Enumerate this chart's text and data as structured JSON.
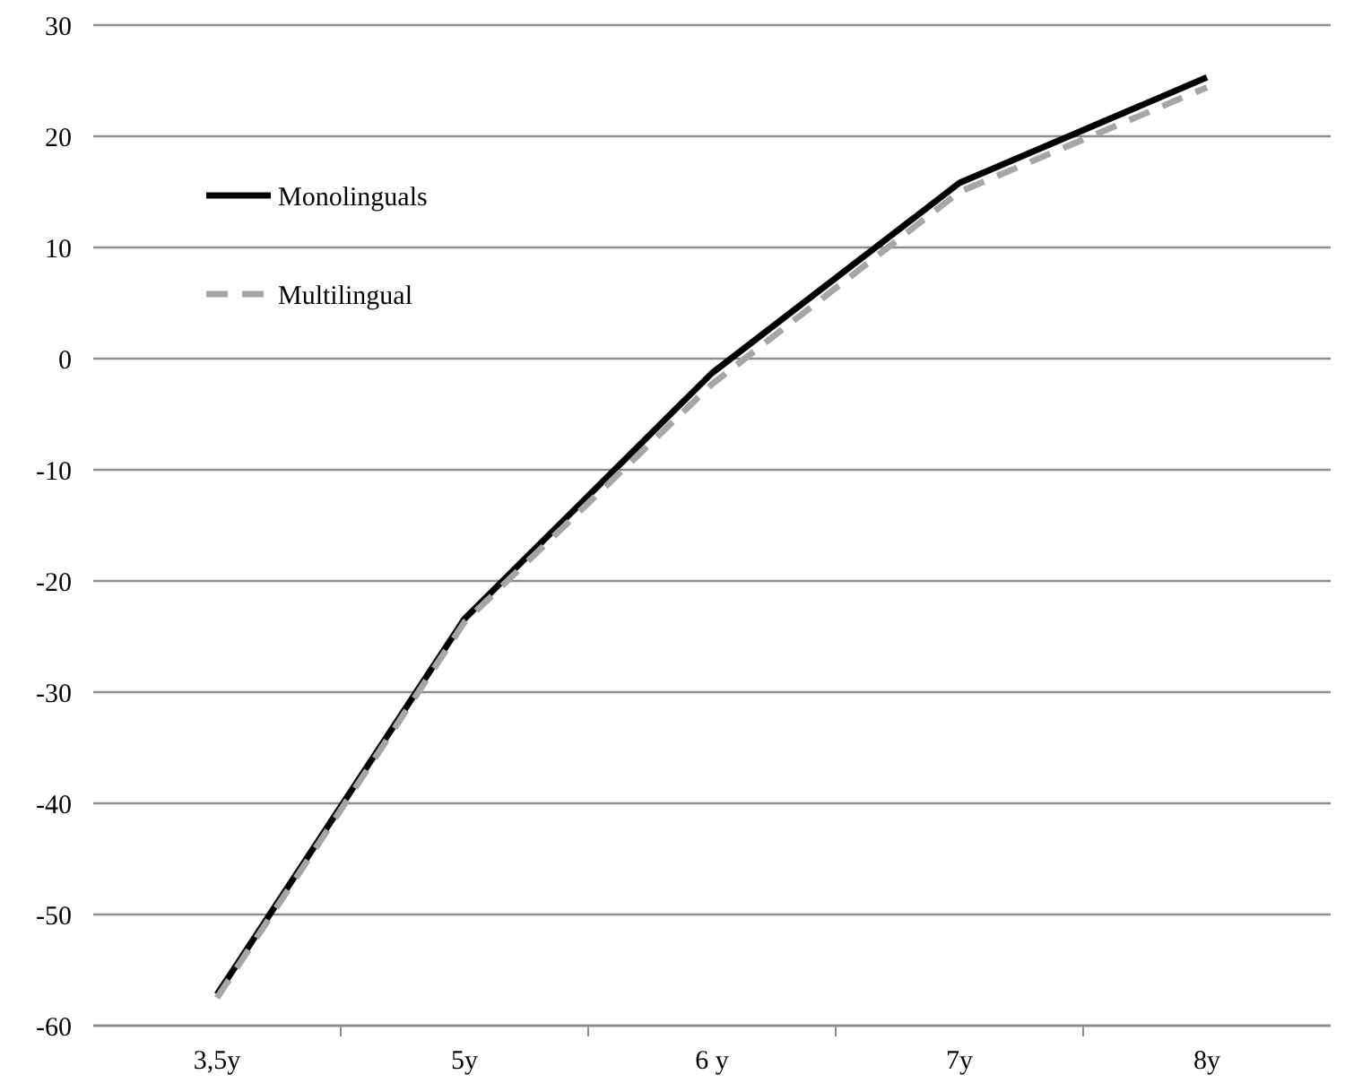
{
  "chart_data": {
    "type": "line",
    "categories": [
      "3,5y",
      "5y",
      "6 y",
      "7y",
      "8y"
    ],
    "series": [
      {
        "name": "Monolinguals",
        "color": "#000000",
        "line_style": "solid",
        "values": [
          -57.2,
          -23.4,
          -1.3,
          15.8,
          25.3
        ]
      },
      {
        "name": "Multilingual",
        "color": "#a6a6a6",
        "line_style": "dashed",
        "values": [
          -57.5,
          -23.7,
          -2.3,
          15.0,
          24.4
        ]
      }
    ],
    "ylim": [
      -60,
      30
    ],
    "yticks": [
      -60,
      -50,
      -40,
      -30,
      -20,
      -10,
      0,
      10,
      20,
      30
    ],
    "grid": "y",
    "legend": "top left",
    "marker": "none"
  }
}
